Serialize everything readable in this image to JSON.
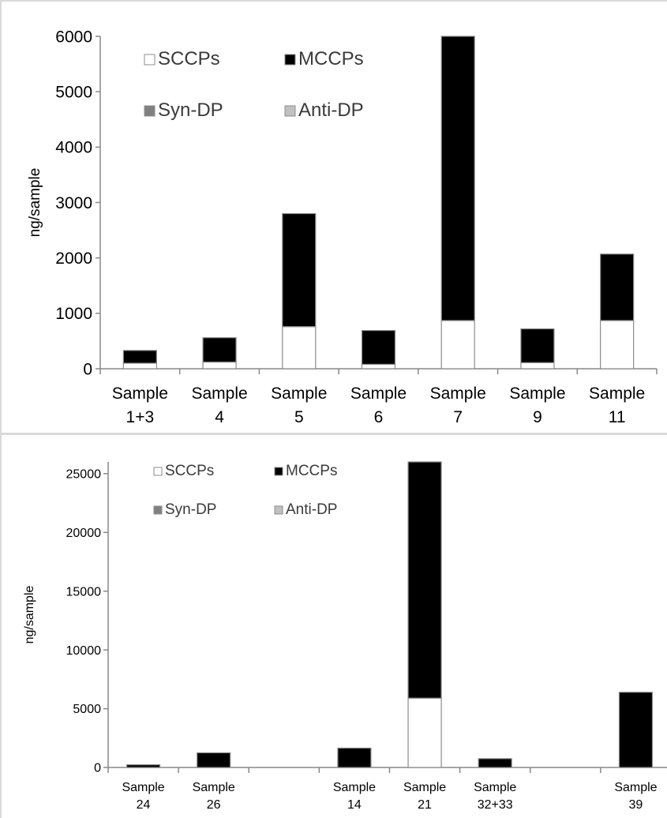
{
  "chart_data": [
    {
      "type": "bar",
      "stacked": true,
      "title": "",
      "xlabel": "",
      "ylabel": "ng/sample",
      "ylim": [
        0,
        6000
      ],
      "yticks": [
        0,
        1000,
        2000,
        3000,
        4000,
        5000,
        6000
      ],
      "grid": false,
      "legend_position": "top-left",
      "categories": [
        [
          "Sample",
          "1+3"
        ],
        [
          "Sample",
          "4"
        ],
        [
          "Sample",
          "5"
        ],
        [
          "Sample",
          "6"
        ],
        [
          "Sample",
          "7"
        ],
        [
          "Sample",
          "9"
        ],
        [
          "Sample",
          "11"
        ]
      ],
      "series": [
        {
          "name": "SCCPs",
          "color": "#ffffff",
          "values": [
            100,
            120,
            760,
            80,
            870,
            110,
            870
          ]
        },
        {
          "name": "MCCPs",
          "color": "#000000",
          "values": [
            230,
            440,
            2040,
            610,
            5130,
            610,
            1200
          ]
        },
        {
          "name": "Syn-DP",
          "color": "#808080",
          "values": [
            0,
            0,
            0,
            0,
            0,
            0,
            0
          ]
        },
        {
          "name": "Anti-DP",
          "color": "#c0c0c0",
          "values": [
            0,
            0,
            0,
            0,
            0,
            0,
            0
          ]
        }
      ]
    },
    {
      "type": "bar",
      "stacked": true,
      "title": "",
      "xlabel": "",
      "ylabel": "ng/sample",
      "ylim": [
        0,
        26000
      ],
      "yticks": [
        0,
        5000,
        10000,
        15000,
        20000,
        25000
      ],
      "grid": false,
      "legend_position": "top-left",
      "categories": [
        [
          "Sample",
          "24"
        ],
        [
          "Sample",
          "26"
        ],
        [
          "",
          ""
        ],
        [
          "Sample",
          "14"
        ],
        [
          "Sample",
          "21"
        ],
        [
          "Sample",
          "32+33"
        ],
        [
          "",
          ""
        ],
        [
          "Sample",
          "39"
        ]
      ],
      "series": [
        {
          "name": "SCCPs",
          "color": "#ffffff",
          "values": [
            0,
            0,
            0,
            0,
            5900,
            0,
            0,
            0
          ]
        },
        {
          "name": "MCCPs",
          "color": "#000000",
          "values": [
            230,
            1250,
            0,
            1650,
            20100,
            750,
            0,
            6400
          ]
        },
        {
          "name": "Syn-DP",
          "color": "#808080",
          "values": [
            0,
            0,
            0,
            0,
            0,
            0,
            0,
            0
          ]
        },
        {
          "name": "Anti-DP",
          "color": "#c0c0c0",
          "values": [
            0,
            0,
            0,
            0,
            0,
            0,
            0,
            0
          ]
        }
      ]
    }
  ]
}
